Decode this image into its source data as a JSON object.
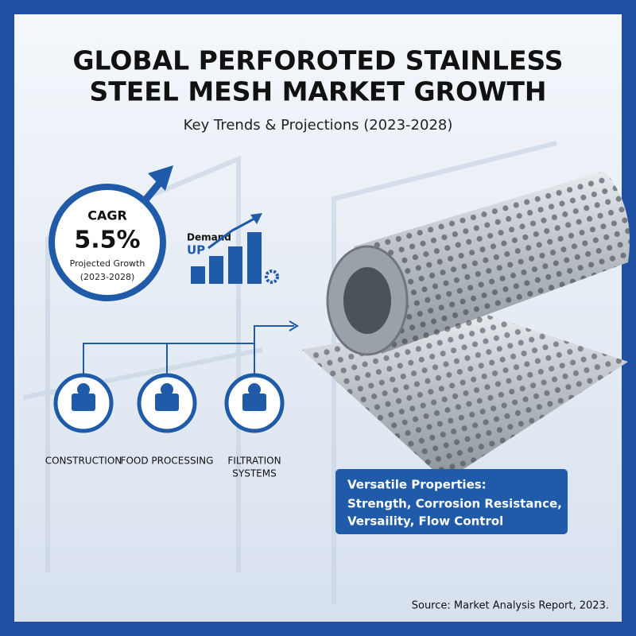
{
  "header": {
    "title_lines": [
      "GLOBAL PERFOROTED STAINLESS",
      "STEEL MESH MARKET GROWTH"
    ],
    "subtitle": "Key Trends & Projections (2023-2028)"
  },
  "cagr": {
    "label": "CAGR",
    "value": "5.5%",
    "caption": "Projected Growth",
    "period": "(2023-2028)"
  },
  "demand": {
    "label": "Demand",
    "direction": "UP"
  },
  "industries": [
    {
      "lines": [
        "CONSTRUCTION"
      ]
    },
    {
      "lines": [
        "FOOD PROCESSING"
      ]
    },
    {
      "lines": [
        "FILTRATION",
        "SYSTEMS"
      ]
    }
  ],
  "properties": {
    "heading": "Versatile Properties:",
    "lines": [
      "Strength, Corrosion Resistance,",
      "Versaility, Flow Control"
    ]
  },
  "source": "Source: Market Analysis Report, 2023."
}
